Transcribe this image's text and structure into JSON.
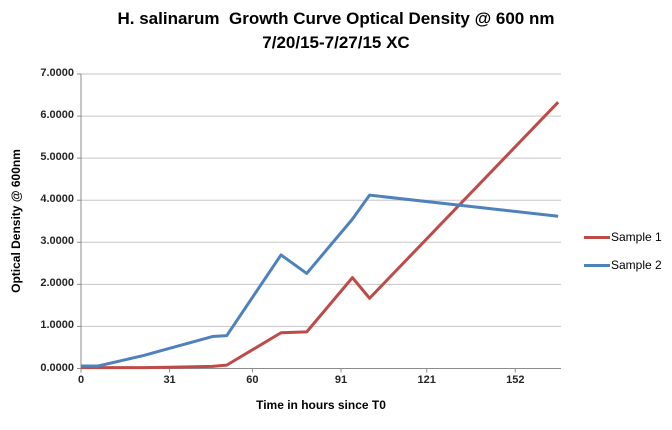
{
  "title": {
    "line1": "H. salinarum  Growth Curve Optical Density @ 600 nm",
    "line2": "7/20/15-7/27/15 XC"
  },
  "chart_data": {
    "type": "line",
    "title": "H. salinarum Growth Curve Optical Density @ 600 nm 7/20/15-7/27/15 XC",
    "xlabel": "Time in hours since T0",
    "ylabel": "Optical Density @ 600nm",
    "xlim": [
      0,
      168
    ],
    "ylim": [
      0,
      7
    ],
    "grid": "horizontal",
    "legend_position": "right",
    "x_ticks": {
      "values": [
        0,
        31,
        60,
        91,
        121,
        152
      ],
      "labels": [
        "0",
        "31",
        "60",
        "91",
        "121",
        "152"
      ]
    },
    "y_ticks": {
      "values": [
        0,
        1,
        2,
        3,
        4,
        5,
        6,
        7
      ],
      "labels": [
        "0.0000",
        "1.0000",
        "2.0000",
        "3.0000",
        "4.0000",
        "5.0000",
        "6.0000",
        "7.0000"
      ]
    },
    "series": [
      {
        "name": "Sample 1",
        "color": "#BE4B48",
        "points": [
          [
            0,
            0.02
          ],
          [
            6,
            0.02
          ],
          [
            22,
            0.02
          ],
          [
            31,
            0.03
          ],
          [
            46,
            0.05
          ],
          [
            51,
            0.08
          ],
          [
            70,
            0.85
          ],
          [
            79,
            0.87
          ],
          [
            95,
            2.16
          ],
          [
            101,
            1.67
          ],
          [
            167,
            6.33
          ]
        ]
      },
      {
        "name": "Sample 2",
        "color": "#4F81BD",
        "points": [
          [
            0,
            0.06
          ],
          [
            6,
            0.06
          ],
          [
            22,
            0.31
          ],
          [
            31,
            0.48
          ],
          [
            46,
            0.76
          ],
          [
            51,
            0.78
          ],
          [
            70,
            2.7
          ],
          [
            79,
            2.26
          ],
          [
            95,
            3.55
          ],
          [
            101,
            4.12
          ],
          [
            167,
            3.62
          ]
        ]
      }
    ]
  }
}
